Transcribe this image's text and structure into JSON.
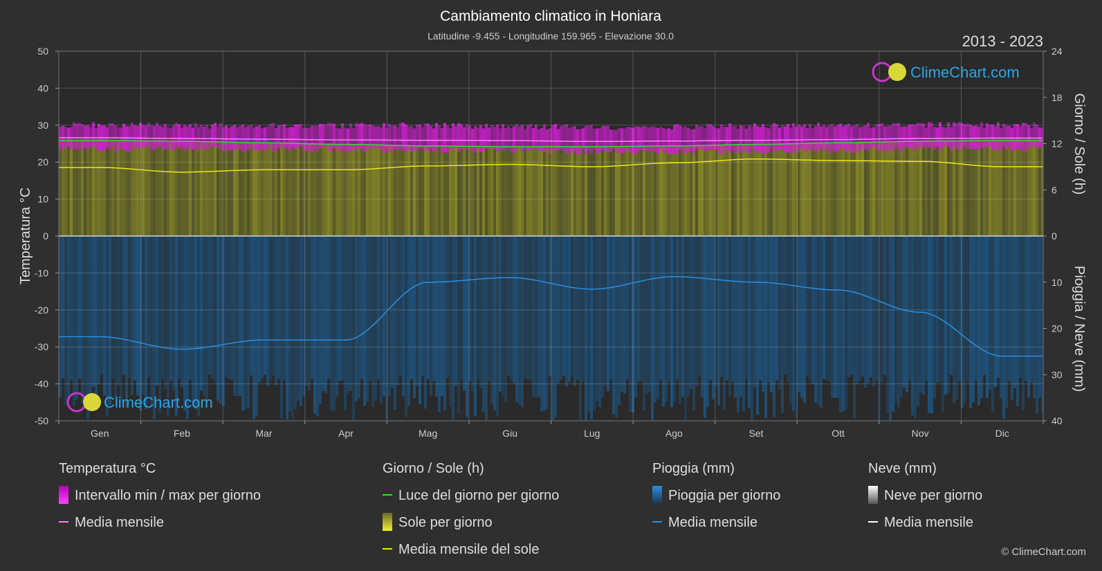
{
  "title": "Cambiamento climatico in Honiara",
  "subtitle": "Latitudine -9.455 - Longitudine 159.965 - Elevazione 30.0",
  "period": "2013 - 2023",
  "logo_text": "ClimeChart.com",
  "copyright": "© ClimeChart.com",
  "colors": {
    "background": "#2f2f2f",
    "temp_band": "#d21fd2",
    "temp_mean": "#ff80ff",
    "daylight": "#33dd33",
    "sun_band": "#a0a028",
    "sun_mean": "#e8e81a",
    "rain_band": "#1c5a8c",
    "rain_mean": "#2a8fe0",
    "snow_mean": "#ffffff"
  },
  "chart_data": {
    "type": "line",
    "months": [
      "Gen",
      "Feb",
      "Mar",
      "Apr",
      "Mag",
      "Giu",
      "Lug",
      "Ago",
      "Set",
      "Ott",
      "Nov",
      "Dic"
    ],
    "axes": {
      "left": {
        "label": "Temperatura °C",
        "min": -50,
        "max": 50,
        "ticks": [
          50,
          40,
          30,
          20,
          10,
          0,
          -10,
          -20,
          -30,
          -40,
          -50
        ]
      },
      "right_top": {
        "label": "Giorno / Sole (h)",
        "min": 0,
        "max": 24,
        "ticks": [
          24,
          18,
          12,
          6,
          0
        ]
      },
      "right_bottom": {
        "label": "Pioggia / Neve (mm)",
        "min": 0,
        "max": 40,
        "ticks": [
          10,
          20,
          30,
          40
        ]
      }
    },
    "grid": true,
    "series": {
      "temp_max": [
        30.0,
        29.9,
        29.8,
        29.9,
        29.9,
        29.7,
        29.5,
        29.6,
        29.8,
        30.0,
        30.1,
        30.0
      ],
      "temp_min": [
        23.6,
        23.6,
        23.5,
        23.4,
        23.2,
        23.0,
        22.8,
        22.8,
        23.0,
        23.3,
        23.5,
        23.6
      ],
      "temp_mean_monthly": [
        26.6,
        26.4,
        26.2,
        26.0,
        25.9,
        25.8,
        25.6,
        25.7,
        25.9,
        26.1,
        26.4,
        26.5
      ],
      "daylight_hours": [
        12.4,
        12.3,
        12.1,
        11.9,
        11.7,
        11.6,
        11.6,
        11.7,
        11.9,
        12.1,
        12.3,
        12.4
      ],
      "sunshine_hours_monthly": [
        8.9,
        8.3,
        8.6,
        8.6,
        9.1,
        9.3,
        9.0,
        9.5,
        10.0,
        9.8,
        9.7,
        9.0
      ],
      "rain_mm_monthly": [
        21.8,
        24.5,
        22.5,
        22.5,
        10.0,
        9.0,
        11.5,
        8.8,
        10.0,
        11.7,
        16.5,
        26.0
      ],
      "snow_mm_monthly": [
        0,
        0,
        0,
        0,
        0,
        0,
        0,
        0,
        0,
        0,
        0,
        0
      ]
    }
  },
  "legend": {
    "temperature": {
      "heading": "Temperatura °C",
      "items": [
        "Intervallo min / max per giorno",
        "Media mensile"
      ]
    },
    "sun": {
      "heading": "Giorno / Sole (h)",
      "items": [
        "Luce del giorno per giorno",
        "Sole per giorno",
        "Media mensile del sole"
      ]
    },
    "rain": {
      "heading": "Pioggia (mm)",
      "items": [
        "Pioggia per giorno",
        "Media mensile"
      ]
    },
    "snow": {
      "heading": "Neve (mm)",
      "items": [
        "Neve per giorno",
        "Media mensile"
      ]
    }
  }
}
